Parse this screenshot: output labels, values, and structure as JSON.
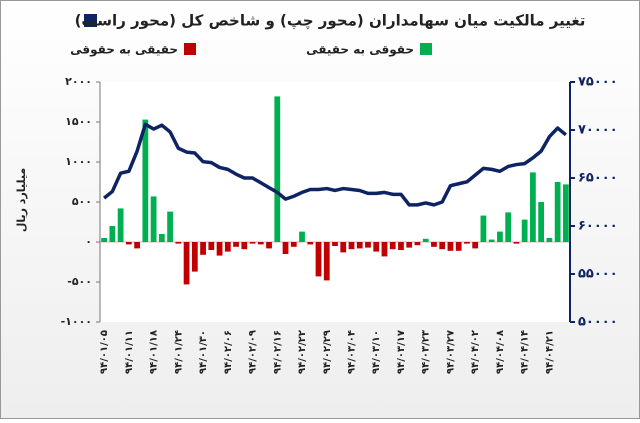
{
  "chart_data": {
    "type": "bar-line",
    "title": "تغییر مالکیت میان سهامداران (محور چپ) و شاخص کل (محور راست)",
    "ylabel": "میلیارد ریال",
    "categories": [
      "۹۴/۰۱/۰۵",
      null,
      null,
      "۹۴/۰۱/۱۱",
      null,
      null,
      "۹۴/۰۱/۱۸",
      null,
      null,
      "۹۴/۰۱/۲۴",
      null,
      null,
      "۹۴/۰۱/۳۰",
      null,
      null,
      "۹۴/۰۲/۰۶",
      null,
      null,
      "۹۴/۰۲/۰۹",
      null,
      null,
      "۹۴/۰۲/۱۶",
      null,
      null,
      "۹۴/۰۲/۲۲",
      null,
      null,
      "۹۴/۰۲/۲۹",
      null,
      null,
      "۹۴/۰۳/۰۴",
      null,
      null,
      "۹۴/۰۳/۱۰",
      null,
      null,
      "۹۴/۰۳/۱۷",
      null,
      null,
      "۹۴/۰۳/۲۳",
      null,
      null,
      "۹۴/۰۳/۲۷",
      null,
      null,
      "۹۴/۰۴/۰۲",
      null,
      null,
      "۹۴/۰۴/۰۸",
      null,
      null,
      "۹۴/۰۴/۱۴",
      null,
      null,
      "۹۴/۰۴/۲۱",
      null,
      null
    ],
    "series": [
      {
        "name": "حقیقی به حقوقی",
        "color": "#c00000",
        "values": [
          null,
          null,
          null,
          -30,
          -80,
          null,
          null,
          null,
          null,
          -20,
          -530,
          -370,
          -160,
          -100,
          -170,
          -120,
          -60,
          -90,
          -20,
          -30,
          -80,
          null,
          -150,
          -60,
          null,
          -30,
          -430,
          -480,
          -50,
          -130,
          -90,
          -80,
          -70,
          -120,
          -180,
          -90,
          -100,
          -70,
          -40,
          null,
          -60,
          -90,
          -110,
          -110,
          -20,
          -80,
          null,
          null,
          null,
          null,
          -20,
          null,
          null,
          null,
          null,
          null,
          null
        ]
      },
      {
        "name": "حقوقی به حقیقی",
        "color": "#00b050",
        "values": [
          50,
          200,
          420,
          null,
          null,
          1530,
          570,
          100,
          380,
          null,
          null,
          null,
          null,
          null,
          null,
          null,
          null,
          null,
          null,
          null,
          null,
          1820,
          null,
          null,
          130,
          null,
          null,
          null,
          null,
          null,
          null,
          null,
          null,
          null,
          null,
          null,
          null,
          null,
          null,
          40,
          null,
          null,
          null,
          null,
          null,
          null,
          330,
          30,
          130,
          370,
          null,
          280,
          870,
          500,
          50,
          750,
          720
        ]
      },
      {
        "color": "#0d2364",
        "axis": "y2",
        "values": [
          62900,
          63600,
          65500,
          65700,
          67800,
          70600,
          70100,
          70500,
          69800,
          68100,
          67700,
          67600,
          66700,
          66600,
          66100,
          65900,
          65400,
          65000,
          65000,
          64500,
          64000,
          63500,
          62800,
          63100,
          63500,
          63800,
          63800,
          63900,
          63700,
          63900,
          63800,
          63700,
          63400,
          63400,
          63500,
          63300,
          63300,
          62200,
          62200,
          62400,
          62200,
          62500,
          64200,
          64400,
          64600,
          65300,
          66000,
          65900,
          65700,
          66200,
          66400,
          66500,
          67100,
          67800,
          69300,
          70200,
          69500
        ]
      }
    ],
    "ylim": [
      -1000,
      2000
    ],
    "yticks": [
      {
        "value": -1000,
        "label": "-۱۰۰۰"
      },
      {
        "value": -500,
        "label": "-۵۰۰"
      },
      {
        "value": 0,
        "label": "۰"
      },
      {
        "value": 500,
        "label": "۵۰۰"
      },
      {
        "value": 1000,
        "label": "۱۰۰۰"
      },
      {
        "value": 1500,
        "label": "۱۵۰۰"
      },
      {
        "value": 2000,
        "label": "۲۰۰۰"
      }
    ],
    "y2lim": [
      50000,
      75000
    ],
    "y2ticks": [
      {
        "value": 50000,
        "label": "۵۰۰۰۰"
      },
      {
        "value": 55000,
        "label": "۵۵۰۰۰"
      },
      {
        "value": 60000,
        "label": "۶۰۰۰۰"
      },
      {
        "value": 65000,
        "label": "۶۵۰۰۰"
      },
      {
        "value": 70000,
        "label": "۷۰۰۰۰"
      },
      {
        "value": 75000,
        "label": "۷۵۰۰۰"
      }
    ]
  }
}
